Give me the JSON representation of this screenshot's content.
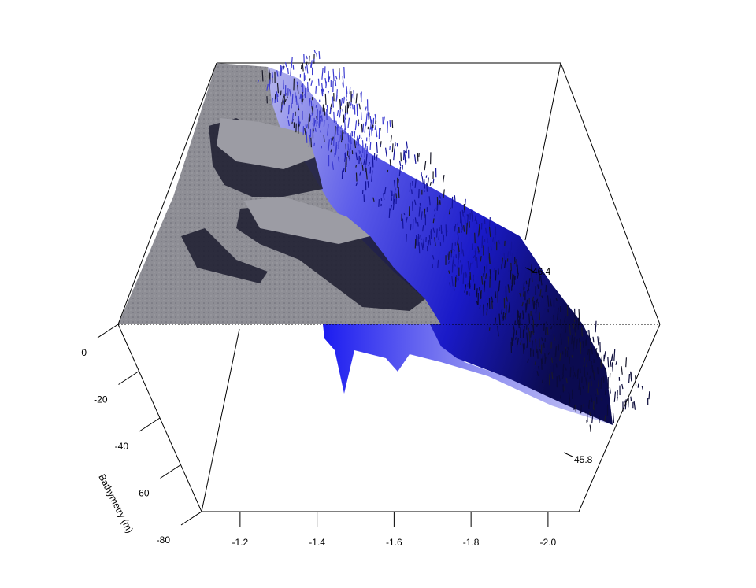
{
  "chart_data": {
    "type": "surface3d",
    "title": "",
    "z_axis": {
      "label": "Bathymetry (m)",
      "ticks": [
        0,
        -20,
        -40,
        -60,
        -80
      ],
      "tick_labels": [
        "0",
        "-20",
        "-40",
        "-60",
        "-80"
      ],
      "range": [
        -80,
        0
      ]
    },
    "x_axis": {
      "label": "",
      "ticks": [
        -1.2,
        -1.4,
        -1.6,
        -1.8,
        -2.0
      ],
      "tick_labels": [
        "-1.2",
        "-1.4",
        "-1.6",
        "-1.8",
        "-2.0"
      ],
      "range": [
        -1.1,
        -2.08
      ]
    },
    "y_axis": {
      "label": "",
      "ticks": [
        46.4,
        45.8
      ],
      "tick_labels": [
        "46.4",
        "45.8"
      ],
      "range": [
        45.6,
        46.6
      ]
    },
    "surface": {
      "land_color": "#8e8e95",
      "shallow_color": "#a8a8e8",
      "deep_color": "#0000d8",
      "dark_color": "#0a0a30"
    },
    "legend": "none",
    "grid": false
  }
}
